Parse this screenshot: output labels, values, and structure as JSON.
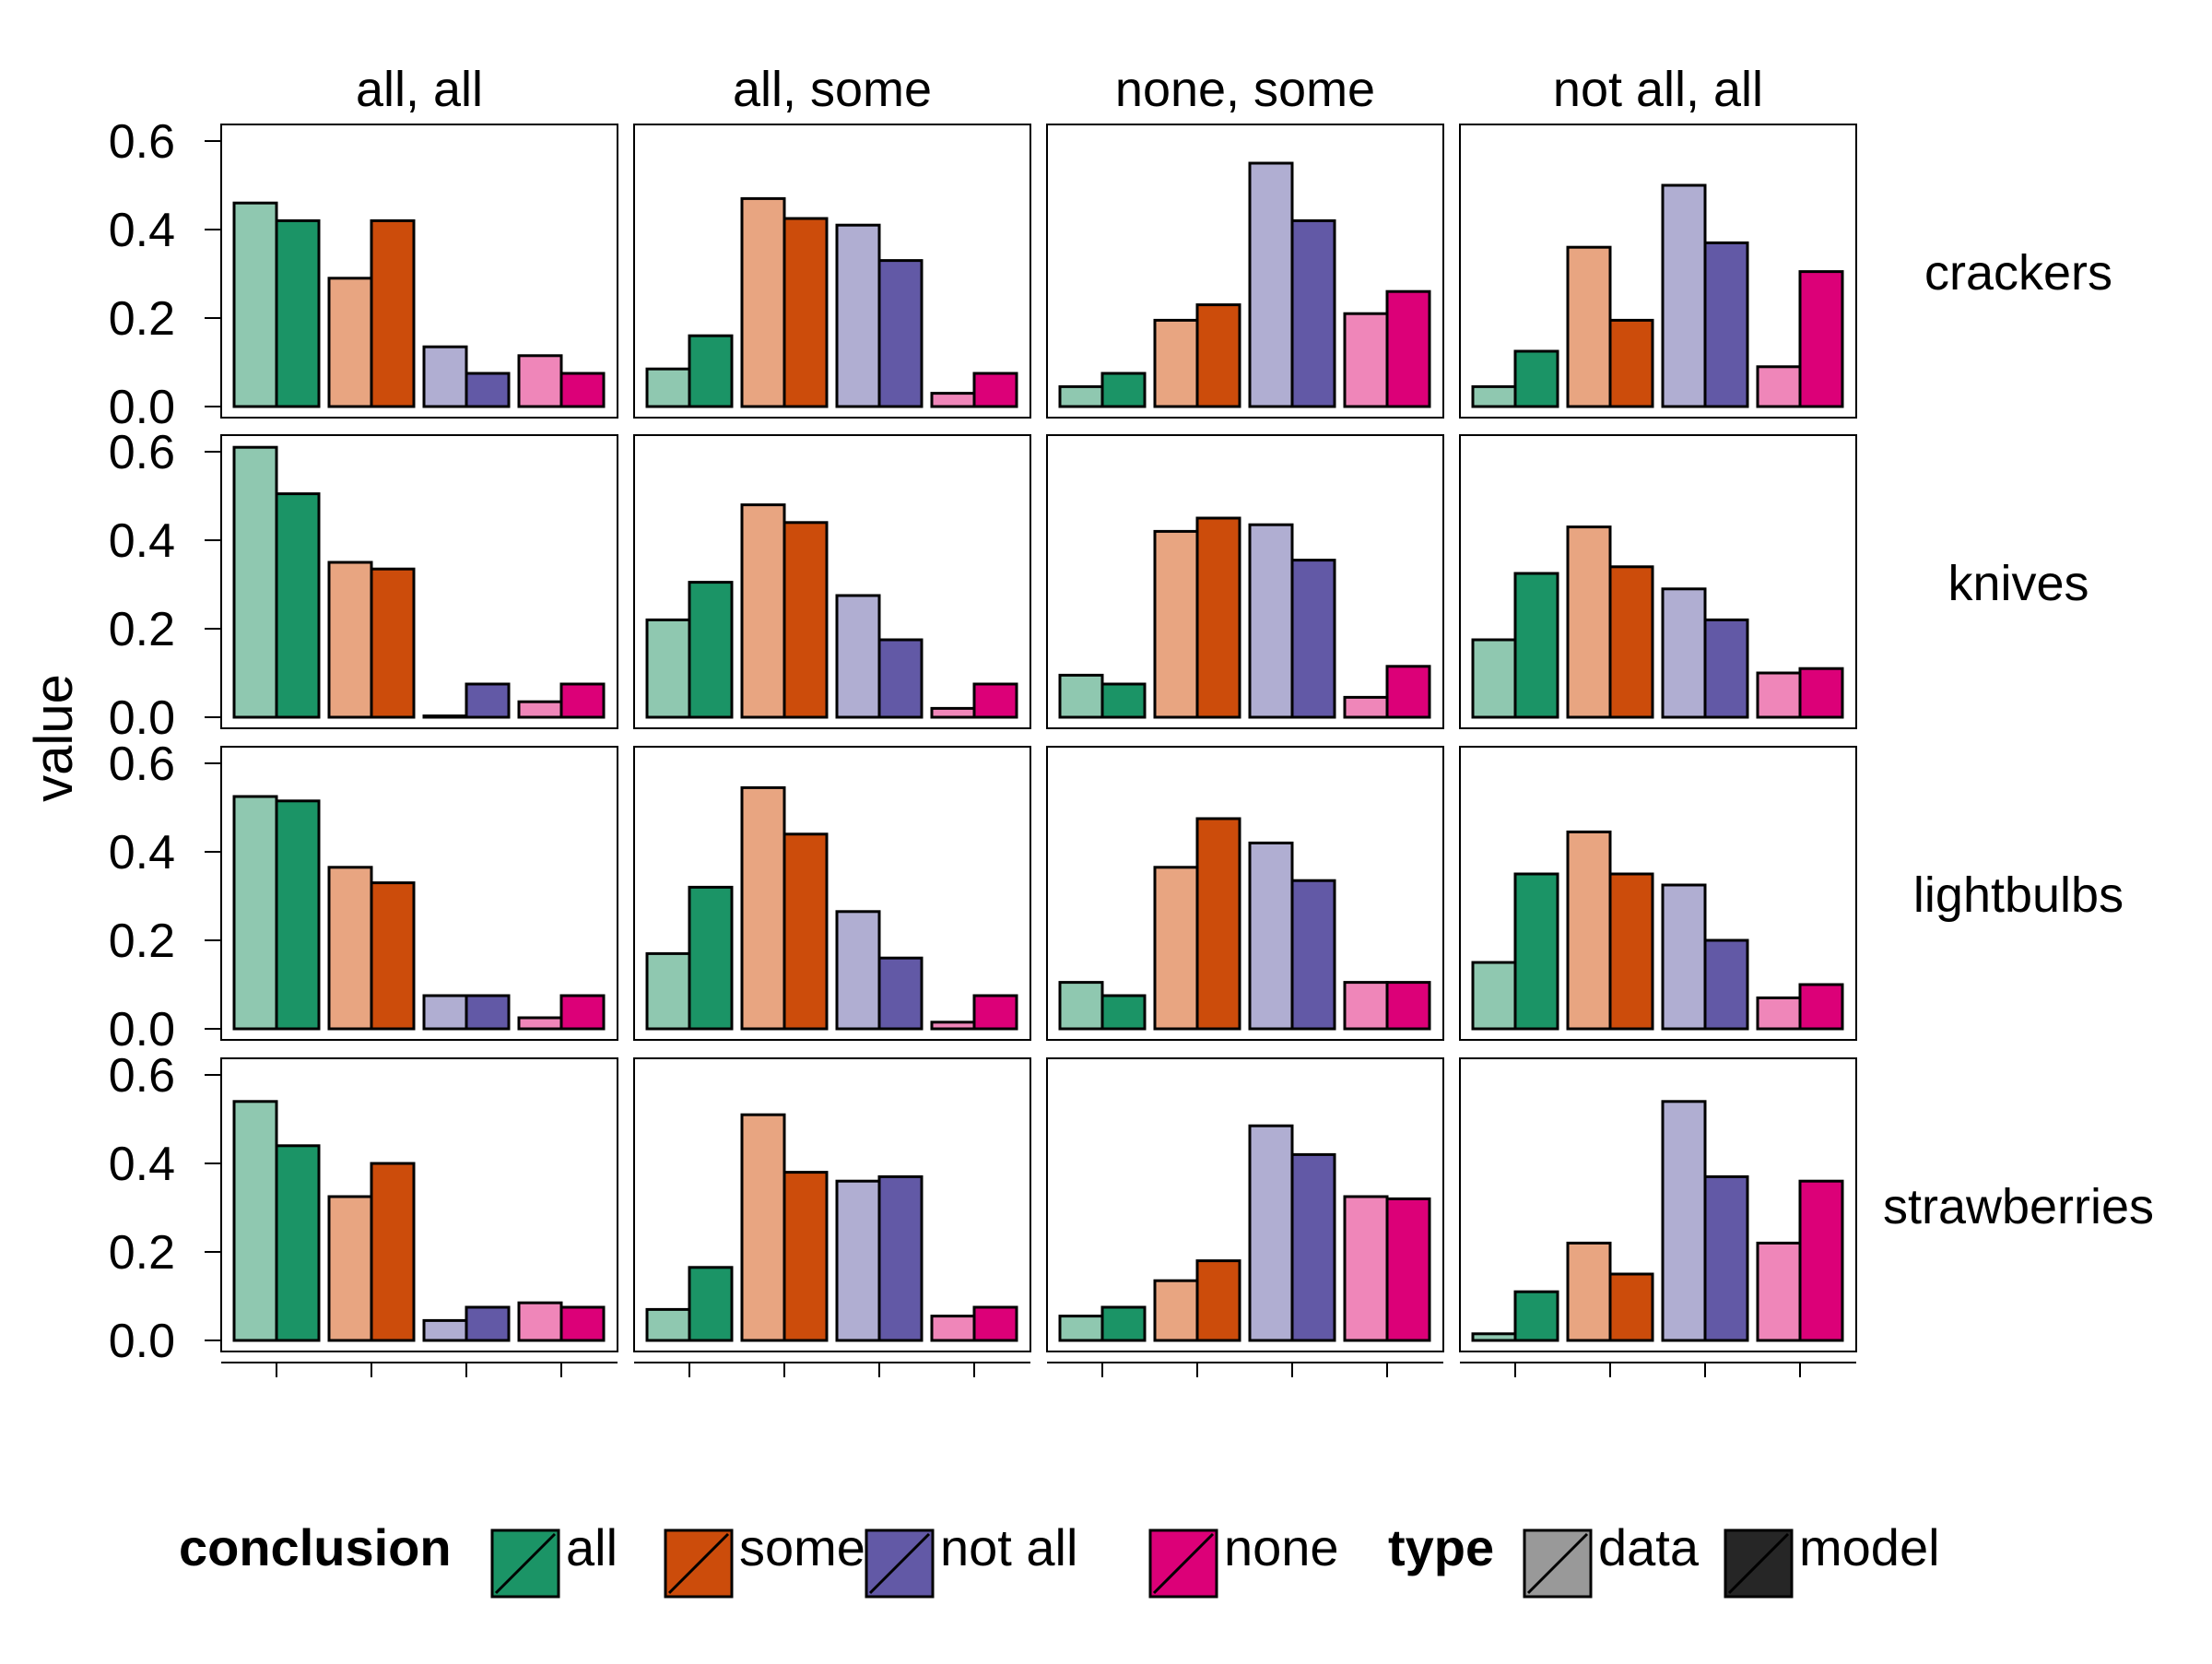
{
  "chart_data": {
    "type": "bar",
    "ylabel": "value",
    "ylim": [
      0,
      0.65
    ],
    "y_ticks": [
      "0.0",
      "0.2",
      "0.4",
      "0.6"
    ],
    "y_tick_values": [
      0,
      0.2,
      0.4,
      0.6
    ],
    "categories": [
      "all",
      "some",
      "not all",
      "none"
    ],
    "types": [
      "data",
      "model"
    ],
    "columns": [
      "all, all",
      "all, some",
      "none, some",
      "not all, all"
    ],
    "rows": [
      "crackers",
      "knives",
      "lightbulbs",
      "strawberries"
    ],
    "colors": {
      "all": {
        "data": "#8fc8b0",
        "model": "#1b9466"
      },
      "some": {
        "data": "#e8a581",
        "model": "#cc4c0b"
      },
      "not all": {
        "data": "#b0aed2",
        "model": "#6259a6"
      },
      "none": {
        "data": "#ef86b9",
        "model": "#dc0078"
      }
    },
    "panels": [
      {
        "row": "crackers",
        "column": "all, all",
        "data": [
          0.46,
          0.29,
          0.135,
          0.115
        ],
        "model": [
          0.42,
          0.42,
          0.075,
          0.075
        ]
      },
      {
        "row": "crackers",
        "column": "all, some",
        "data": [
          0.085,
          0.47,
          0.41,
          0.03
        ],
        "model": [
          0.16,
          0.425,
          0.33,
          0.075
        ]
      },
      {
        "row": "crackers",
        "column": "none, some",
        "data": [
          0.045,
          0.195,
          0.55,
          0.21
        ],
        "model": [
          0.075,
          0.23,
          0.42,
          0.26
        ]
      },
      {
        "row": "crackers",
        "column": "not all, all",
        "data": [
          0.045,
          0.36,
          0.5,
          0.09
        ],
        "model": [
          0.125,
          0.195,
          0.37,
          0.305
        ]
      },
      {
        "row": "knives",
        "column": "all, all",
        "data": [
          0.61,
          0.35,
          0.003,
          0.035
        ],
        "model": [
          0.505,
          0.335,
          0.075,
          0.075
        ]
      },
      {
        "row": "knives",
        "column": "all, some",
        "data": [
          0.22,
          0.48,
          0.275,
          0.02
        ],
        "model": [
          0.305,
          0.44,
          0.175,
          0.075
        ]
      },
      {
        "row": "knives",
        "column": "none, some",
        "data": [
          0.095,
          0.42,
          0.435,
          0.045
        ],
        "model": [
          0.075,
          0.45,
          0.355,
          0.115
        ]
      },
      {
        "row": "knives",
        "column": "not all, all",
        "data": [
          0.175,
          0.43,
          0.29,
          0.1
        ],
        "model": [
          0.325,
          0.34,
          0.22,
          0.11
        ]
      },
      {
        "row": "lightbulbs",
        "column": "all, all",
        "data": [
          0.525,
          0.365,
          0.075,
          0.025
        ],
        "model": [
          0.515,
          0.33,
          0.075,
          0.075
        ]
      },
      {
        "row": "lightbulbs",
        "column": "all, some",
        "data": [
          0.17,
          0.545,
          0.265,
          0.015
        ],
        "model": [
          0.32,
          0.44,
          0.16,
          0.075
        ]
      },
      {
        "row": "lightbulbs",
        "column": "none, some",
        "data": [
          0.105,
          0.365,
          0.42,
          0.105
        ],
        "model": [
          0.075,
          0.475,
          0.335,
          0.105
        ]
      },
      {
        "row": "lightbulbs",
        "column": "not all, all",
        "data": [
          0.15,
          0.445,
          0.325,
          0.07
        ],
        "model": [
          0.35,
          0.35,
          0.2,
          0.1
        ]
      },
      {
        "row": "strawberries",
        "column": "all, all",
        "data": [
          0.54,
          0.325,
          0.045,
          0.085
        ],
        "model": [
          0.44,
          0.4,
          0.075,
          0.075
        ]
      },
      {
        "row": "strawberries",
        "column": "all, some",
        "data": [
          0.07,
          0.51,
          0.36,
          0.055
        ],
        "model": [
          0.165,
          0.38,
          0.37,
          0.075
        ]
      },
      {
        "row": "strawberries",
        "column": "none, some",
        "data": [
          0.055,
          0.135,
          0.485,
          0.325
        ],
        "model": [
          0.075,
          0.18,
          0.42,
          0.32
        ]
      },
      {
        "row": "strawberries",
        "column": "not all, all",
        "data": [
          0.015,
          0.22,
          0.54,
          0.22
        ],
        "model": [
          0.11,
          0.15,
          0.37,
          0.36
        ]
      }
    ],
    "legend": {
      "position": "bottom",
      "groups": [
        {
          "title": "conclusion",
          "items": [
            {
              "label": "all",
              "color": "#1b9466"
            },
            {
              "label": "some",
              "color": "#cc4c0b"
            },
            {
              "label": "not all",
              "color": "#6259a6"
            },
            {
              "label": "none",
              "color": "#dc0078"
            }
          ]
        },
        {
          "title": "type",
          "items": [
            {
              "label": "data",
              "color": "#999999"
            },
            {
              "label": "model",
              "color": "#262626"
            }
          ]
        }
      ]
    },
    "grid": false
  }
}
